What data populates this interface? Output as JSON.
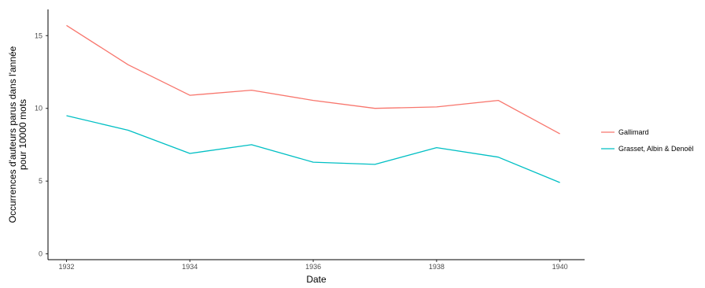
{
  "chart_data": {
    "type": "line",
    "title": "",
    "xlabel": "Date",
    "ylabel_lines": [
      "Occurrences d'auteurs parus dans l'année",
      "pour 10000 mots"
    ],
    "x": [
      1932,
      1933,
      1934,
      1935,
      1936,
      1937,
      1938,
      1939,
      1940
    ],
    "x_ticks": [
      1932,
      1934,
      1936,
      1938,
      1940
    ],
    "y_ticks": [
      0,
      5,
      10,
      15
    ],
    "xlim": [
      1931.7,
      1940.4
    ],
    "ylim": [
      -0.4,
      16.8
    ],
    "grid": false,
    "legend_position": "right",
    "series": [
      {
        "name": "Gallimard",
        "color": "#f8766d",
        "values": [
          15.7,
          13.0,
          10.9,
          11.25,
          10.55,
          10.0,
          10.1,
          10.55,
          8.25
        ]
      },
      {
        "name": "Grasset, Albin & Denoël",
        "color": "#00bfc4",
        "values": [
          9.5,
          8.5,
          6.9,
          7.5,
          6.3,
          6.15,
          7.3,
          6.65,
          4.9
        ]
      }
    ]
  }
}
